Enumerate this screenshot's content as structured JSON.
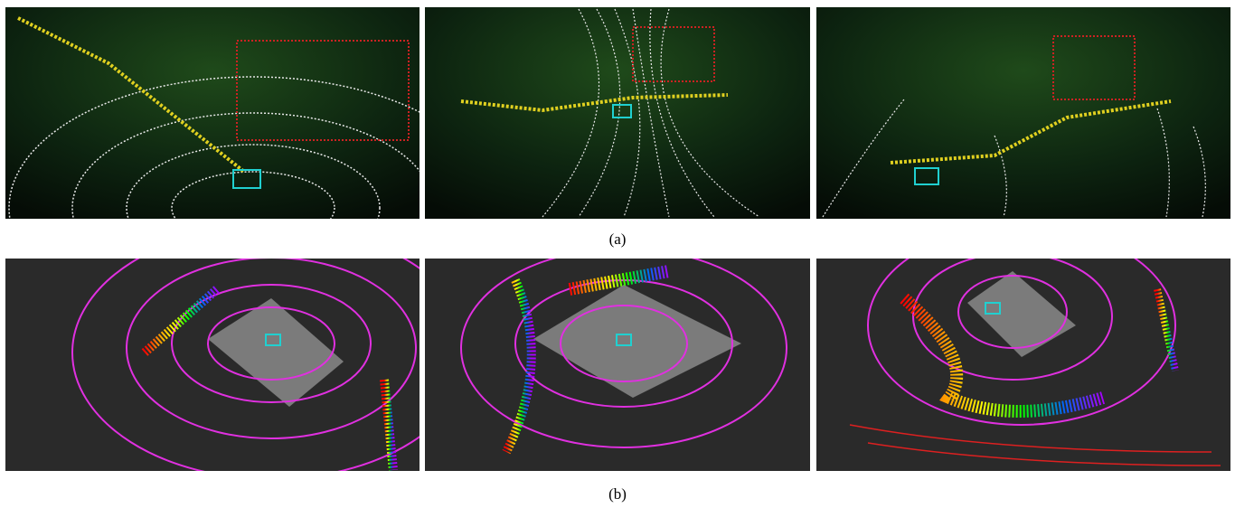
{
  "figure": {
    "rows": [
      {
        "label": "(a)"
      },
      {
        "label": "(b)"
      }
    ]
  }
}
